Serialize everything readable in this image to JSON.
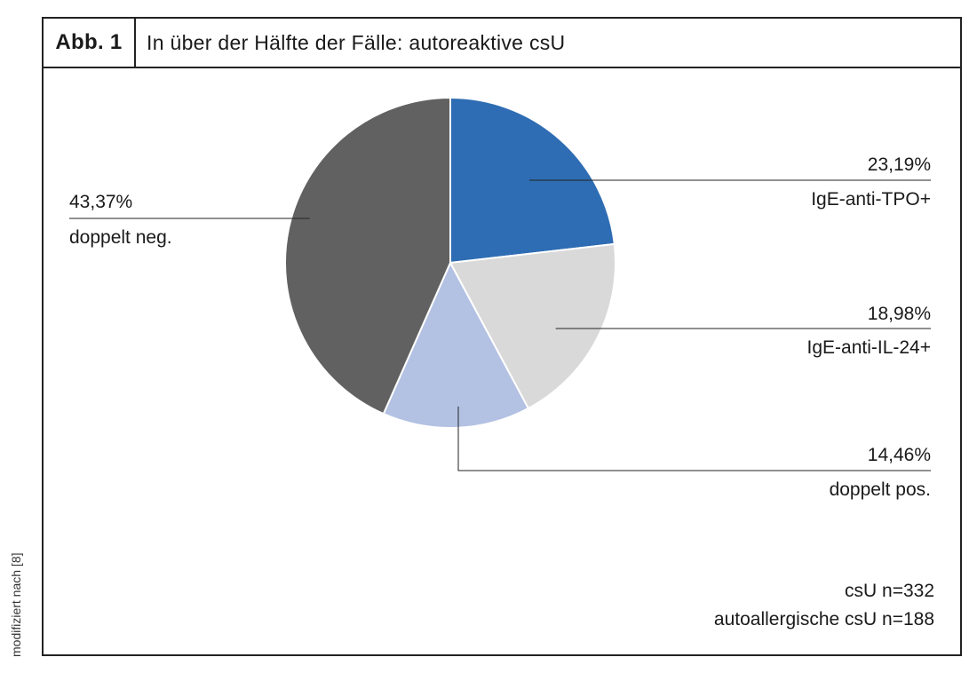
{
  "figure": {
    "label": "Abb. 1",
    "title": "In über der Hälfte der Fälle: autoreaktive csU",
    "side_note": "modifiziert nach [8]"
  },
  "chart_data": {
    "type": "pie",
    "slices": [
      {
        "label": "IgE-anti-TPO+",
        "value": 23.19,
        "value_text": "23,19%",
        "color": "#2e6db3"
      },
      {
        "label": "IgE-anti-IL-24+",
        "value": 18.98,
        "value_text": "18,98%",
        "color": "#d9d9d9"
      },
      {
        "label": "doppelt pos.",
        "value": 14.46,
        "value_text": "14,46%",
        "color": "#b3c1e3"
      },
      {
        "label": "doppelt neg.",
        "value": 43.37,
        "value_text": "43,37%",
        "color": "#616161"
      }
    ],
    "notes": [
      "csU n=332",
      "autoallergische csU n=188"
    ]
  }
}
